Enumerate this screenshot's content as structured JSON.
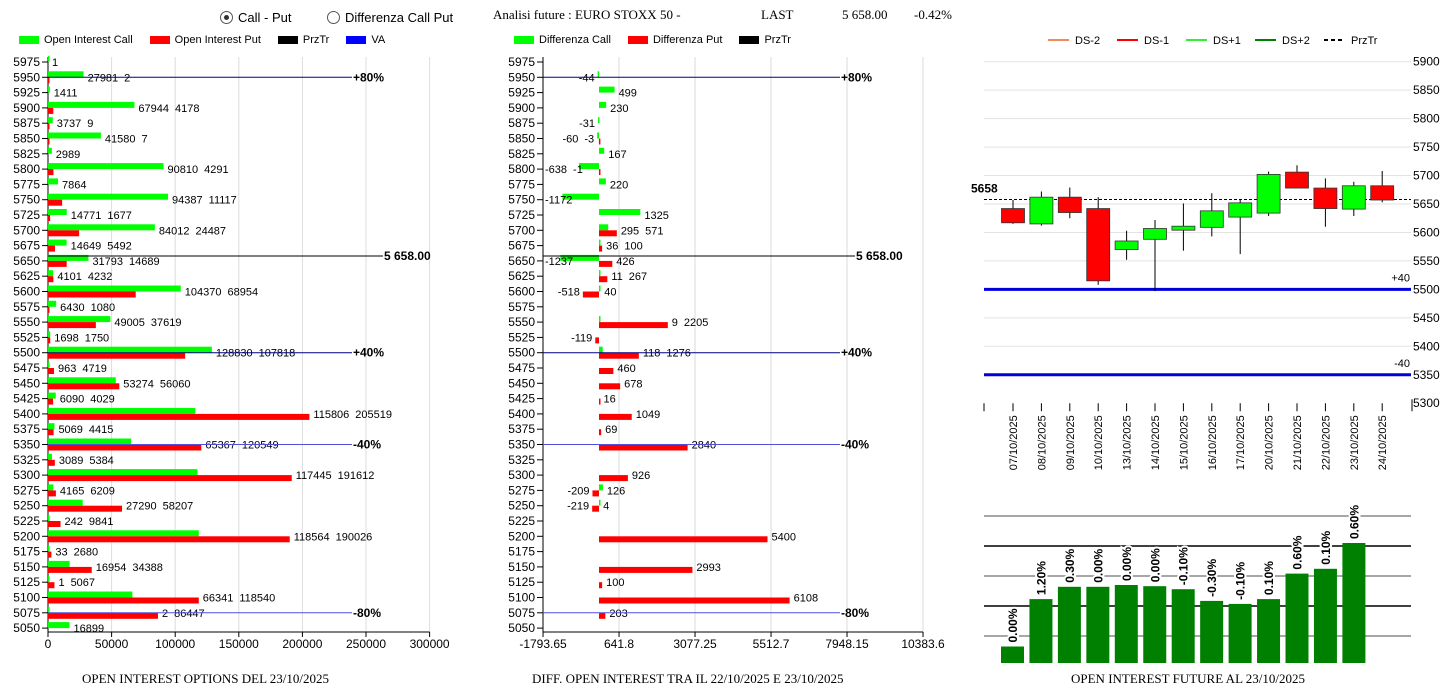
{
  "header": {
    "radio_options": [
      {
        "label": "Call - Put",
        "selected": true
      },
      {
        "label": "Differenza Call Put",
        "selected": false
      }
    ],
    "title": "Analisi future : EURO STOXX 50 -",
    "last_label": "LAST",
    "last_value": "5 658.00",
    "change": "-0.42%"
  },
  "colors": {
    "call": "#00ff00",
    "put": "#ff0000",
    "prztr": "#000000",
    "va": "#0000ff",
    "future_bar": "#008000",
    "ds_minus2": "#f08a5d",
    "ds_minus1": "#ff0000",
    "ds_plus1": "#33ee33",
    "ds_plus2": "#008000"
  },
  "chart_data": [
    {
      "type": "bar",
      "orientation": "horizontal",
      "title": "OPEN INTEREST OPTIONS DEL 23/10/2025",
      "legend": [
        "Open Interest Call",
        "Open Interest Put",
        "PrzTr",
        "VA"
      ],
      "xlim": [
        0,
        300000
      ],
      "xticks": [
        "0",
        "50000",
        "100000",
        "150000",
        "200000",
        "250000",
        "300000"
      ],
      "categories": [
        5975,
        5950,
        5925,
        5900,
        5875,
        5850,
        5825,
        5800,
        5775,
        5750,
        5725,
        5700,
        5675,
        5650,
        5625,
        5600,
        5575,
        5550,
        5525,
        5500,
        5475,
        5450,
        5425,
        5400,
        5375,
        5350,
        5325,
        5300,
        5275,
        5250,
        5225,
        5200,
        5175,
        5150,
        5125,
        5100,
        5075,
        5050
      ],
      "series": [
        {
          "name": "Open Interest Call",
          "values": [
            1,
            27981,
            1411,
            67944,
            3737,
            41580,
            2989,
            90810,
            7864,
            94387,
            14771,
            84012,
            14649,
            31793,
            4101,
            104370,
            6430,
            49005,
            1698,
            128830,
            963,
            53274,
            6090,
            115806,
            5069,
            65367,
            3089,
            117445,
            4165,
            27290,
            242,
            118564,
            33,
            16954,
            1,
            66341,
            2,
            16899
          ]
        },
        {
          "name": "Open Interest Put",
          "values": [
            null,
            2,
            null,
            4178,
            9,
            7,
            null,
            4291,
            null,
            11117,
            1677,
            24487,
            5492,
            14689,
            4232,
            68954,
            1080,
            37619,
            1750,
            107818,
            4719,
            56060,
            4029,
            205519,
            4415,
            120549,
            5384,
            191612,
            6209,
            58207,
            9841,
            190026,
            2680,
            34388,
            5067,
            118540,
            86447,
            null
          ]
        }
      ],
      "reference_lines": [
        {
          "price": 5950,
          "label": "+80%",
          "kind": "va"
        },
        {
          "price": 5658,
          "label": "5 658.00",
          "kind": "prztr"
        },
        {
          "price": 5500,
          "label": "+40%",
          "kind": "va"
        },
        {
          "price": 5350,
          "label": "-40%",
          "kind": "va"
        },
        {
          "price": 5075,
          "label": "-80%",
          "kind": "va"
        }
      ]
    },
    {
      "type": "bar",
      "orientation": "horizontal",
      "title": "DIFF. OPEN INTEREST TRA IL 22/10/2025 E 23/10/2025",
      "legend": [
        "Differenza Call",
        "Differenza Put",
        "PrzTr"
      ],
      "xlim": [
        -1793.65,
        10383.6
      ],
      "xticks": [
        "-1793.65",
        "641.8",
        "3077.25",
        "5512.7",
        "7948.15",
        "10383.6"
      ],
      "categories": [
        5975,
        5950,
        5925,
        5900,
        5875,
        5850,
        5825,
        5800,
        5775,
        5750,
        5725,
        5700,
        5675,
        5650,
        5625,
        5600,
        5575,
        5550,
        5525,
        5500,
        5475,
        5450,
        5425,
        5400,
        5375,
        5350,
        5325,
        5300,
        5275,
        5250,
        5225,
        5200,
        5175,
        5150,
        5125,
        5100,
        5075,
        5050
      ],
      "series": [
        {
          "name": "Differenza Call",
          "values": [
            null,
            -44,
            499,
            230,
            -31,
            -60,
            167,
            -638,
            220,
            -1172,
            1325,
            295,
            36,
            -1237,
            11,
            40,
            null,
            9,
            null,
            118,
            null,
            null,
            null,
            null,
            null,
            null,
            null,
            null,
            126,
            4,
            null,
            null,
            null,
            null,
            null,
            null,
            null,
            null
          ]
        },
        {
          "name": "Differenza Put",
          "values": [
            null,
            null,
            null,
            null,
            null,
            -3,
            null,
            -1,
            null,
            null,
            null,
            571,
            100,
            426,
            267,
            -518,
            null,
            2205,
            -119,
            1276,
            460,
            678,
            16,
            1049,
            69,
            2840,
            null,
            926,
            -209,
            -219,
            null,
            5400,
            null,
            2993,
            100,
            6108,
            203,
            null
          ]
        }
      ],
      "reference_lines": [
        {
          "price": 5950,
          "label": "+80%",
          "kind": "va"
        },
        {
          "price": 5658,
          "label": "5 658.00",
          "kind": "prztr"
        },
        {
          "price": 5500,
          "label": "+40%",
          "kind": "va"
        },
        {
          "price": 5350,
          "label": "-40%",
          "kind": "va"
        },
        {
          "price": 5075,
          "label": "-80%",
          "kind": "va"
        }
      ]
    },
    {
      "type": "candlestick",
      "legend": [
        "DS-2",
        "DS-1",
        "DS+1",
        "DS+2",
        "PrzTr"
      ],
      "ylim": [
        5300,
        5900
      ],
      "yticks": [
        "5900",
        "5850",
        "5800",
        "5750",
        "5700",
        "5650",
        "5600",
        "5550",
        "5500",
        "5450",
        "5400",
        "5350",
        "5300"
      ],
      "price_label": "5658",
      "price": 5658,
      "categories": [
        "07/10/2025",
        "08/10/2025",
        "09/10/2025",
        "10/10/2025",
        "13/10/2025",
        "14/10/2025",
        "15/10/2025",
        "16/10/2025",
        "17/10/2025",
        "20/10/2025",
        "21/10/2025",
        "22/10/2025",
        "23/10/2025",
        "24/10/2025"
      ],
      "ohlc": [
        [
          5642,
          5657,
          5615,
          5617
        ],
        [
          5615,
          5672,
          5612,
          5662
        ],
        [
          5662,
          5679,
          5625,
          5635
        ],
        [
          5642,
          5662,
          5508,
          5515
        ],
        [
          5570,
          5603,
          5552,
          5585
        ],
        [
          5588,
          5622,
          5497,
          5607
        ],
        [
          5604,
          5651,
          5568,
          5611
        ],
        [
          5609,
          5669,
          5593,
          5638
        ],
        [
          5627,
          5657,
          5562,
          5652
        ],
        [
          5634,
          5707,
          5629,
          5702
        ],
        [
          5706,
          5718,
          5678,
          5678
        ],
        [
          5678,
          5695,
          5610,
          5642
        ],
        [
          5641,
          5689,
          5629,
          5682
        ],
        [
          5682,
          5708,
          5653,
          5657
        ]
      ],
      "bands": [
        {
          "price": 5500,
          "label": "+40"
        },
        {
          "price": 5350,
          "label": "-40"
        }
      ]
    },
    {
      "type": "bar",
      "title": "OPEN INTEREST FUTURE AL 23/10/2025",
      "values": [
        0.55,
        2.13,
        2.54,
        2.54,
        2.6,
        2.56,
        2.46,
        2.07,
        1.97,
        2.13,
        2.98,
        3.14,
        4.0
      ],
      "labels": [
        "0.00%",
        "1.20%",
        "0.30%",
        "0.00%",
        "0.00%",
        "0.00%",
        "-0.10%",
        "-0.30%",
        "-0.10%",
        "0.10%",
        "0.60%",
        "0.10%",
        "0.60%"
      ],
      "ylim": [
        0,
        5.2
      ]
    }
  ]
}
